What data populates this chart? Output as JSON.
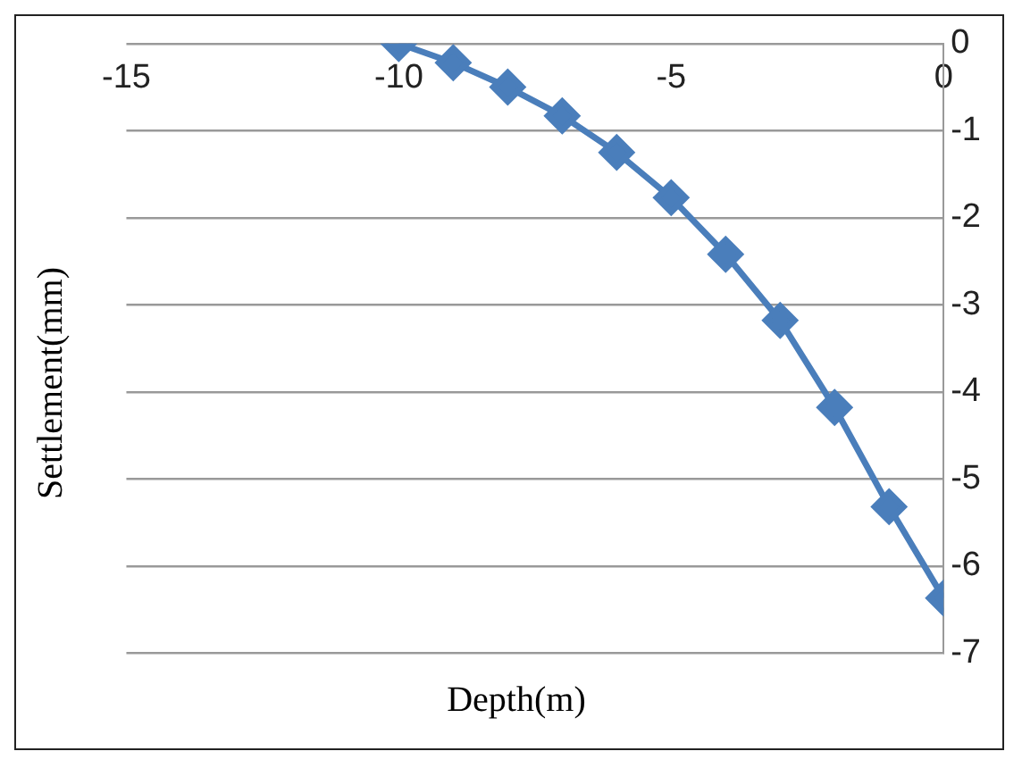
{
  "chart_data": {
    "type": "line",
    "xlabel": "Depth(m)",
    "ylabel": "Settlement(mm)",
    "x": [
      -10,
      -9,
      -8,
      -7,
      -6,
      -5,
      -4,
      -3,
      -2,
      -1,
      0
    ],
    "series": [
      {
        "color": "#4a7ebb",
        "values": [
          0,
          -0.22,
          -0.5,
          -0.83,
          -1.25,
          -1.77,
          -2.42,
          -3.18,
          -4.18,
          -5.32,
          -6.37
        ]
      }
    ],
    "xlim": [
      -15,
      0
    ],
    "xticks": [
      -15,
      -10,
      -5,
      0
    ],
    "ylim": [
      -7,
      0
    ],
    "yticks": [
      0,
      -1,
      -2,
      -3,
      -4,
      -5,
      -6,
      -7
    ],
    "grid": "y",
    "marker": "diamond",
    "line_style": "solid",
    "legend": false
  }
}
